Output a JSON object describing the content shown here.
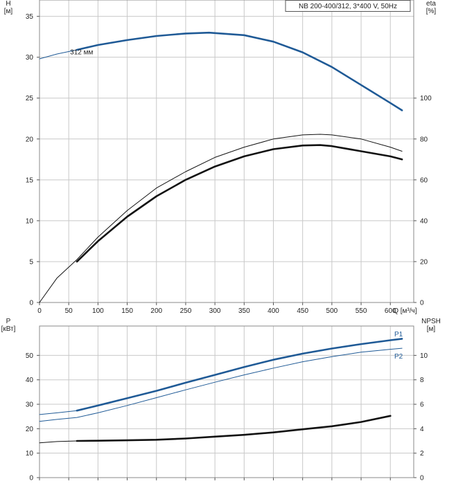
{
  "chart_data": [
    {
      "type": "line",
      "title_box": "NB 200-400/312, 3*400 V, 50Hz",
      "left_axis": {
        "label_top": "H",
        "label_unit": "[м]",
        "range": [
          0,
          37
        ],
        "ticks": [
          0,
          5,
          10,
          15,
          20,
          25,
          30,
          35
        ]
      },
      "right_axis": {
        "label_top": "eta",
        "label_unit": "[%]",
        "range": [
          0,
          148
        ],
        "ticks": [
          0,
          20,
          40,
          60,
          80,
          100
        ]
      },
      "x_axis": {
        "label": "Q [м³/ч]",
        "range": [
          0,
          640
        ],
        "ticks": [
          0,
          50,
          100,
          150,
          200,
          250,
          300,
          350,
          400,
          450,
          500,
          550,
          600
        ]
      },
      "grid": true,
      "annotation": "312 мм",
      "series": [
        {
          "axis": "left",
          "color": "#1f5a96",
          "style": "thin",
          "x": [
            0,
            30,
            64
          ],
          "y": [
            29.8,
            30.4,
            30.9
          ]
        },
        {
          "axis": "left",
          "color": "#1f5a96",
          "style": "thick",
          "x": [
            64,
            100,
            150,
            200,
            250,
            290,
            350,
            400,
            450,
            500,
            550,
            600,
            620
          ],
          "y": [
            30.9,
            31.5,
            32.1,
            32.6,
            32.9,
            33.0,
            32.7,
            31.9,
            30.6,
            28.8,
            26.6,
            24.4,
            23.5
          ]
        },
        {
          "axis": "right",
          "color": "#111111",
          "style": "thin",
          "x": [
            0,
            30,
            64,
            100,
            150,
            200,
            250,
            300,
            350,
            400,
            450,
            480,
            500,
            550,
            600,
            620
          ],
          "y": [
            0,
            12,
            21,
            32,
            45,
            56,
            64,
            71,
            76,
            80,
            82,
            82.3,
            82,
            80,
            76,
            74
          ]
        },
        {
          "axis": "right",
          "color": "#111111",
          "style": "thick",
          "x": [
            64,
            100,
            150,
            200,
            250,
            300,
            350,
            400,
            450,
            480,
            500,
            550,
            600,
            620
          ],
          "y": [
            20,
            30,
            42,
            52,
            60,
            66.5,
            71.5,
            75,
            76.8,
            77,
            76.5,
            74,
            71.5,
            70
          ]
        }
      ]
    },
    {
      "type": "line",
      "left_axis": {
        "label_top": "P",
        "label_unit": "[кВт]",
        "range": [
          0,
          62
        ],
        "ticks": [
          0,
          10,
          20,
          30,
          40,
          50
        ]
      },
      "right_axis": {
        "label_top": "NPSH",
        "label_unit": "[м]",
        "range": [
          0,
          12.4
        ],
        "ticks": [
          0,
          2,
          4,
          6,
          8,
          10
        ]
      },
      "x_axis": {
        "range": [
          0,
          640
        ],
        "ticks": [
          0,
          50,
          100,
          150,
          200,
          250,
          300,
          350,
          400,
          450,
          500,
          550,
          600
        ]
      },
      "grid": true,
      "series": [
        {
          "name": "P1",
          "axis": "left",
          "color": "#1f5a96",
          "style": "thin",
          "x": [
            0,
            30,
            64
          ],
          "y": [
            25.8,
            26.5,
            27.4
          ]
        },
        {
          "name": "P1",
          "axis": "left",
          "color": "#1f5a96",
          "style": "thick",
          "x": [
            64,
            100,
            150,
            200,
            250,
            300,
            350,
            400,
            450,
            500,
            550,
            600,
            620
          ],
          "y": [
            27.4,
            29.5,
            32.5,
            35.5,
            38.8,
            42.0,
            45.2,
            48.2,
            50.7,
            52.8,
            54.6,
            56.2,
            56.8
          ]
        },
        {
          "name": "P2",
          "axis": "left",
          "color": "#1f5a96",
          "style": "thin",
          "x": [
            0,
            30,
            64,
            100,
            150,
            200,
            250,
            300,
            350,
            400,
            450,
            500,
            550,
            600,
            620
          ],
          "y": [
            23.0,
            23.8,
            24.6,
            26.5,
            29.5,
            32.7,
            35.9,
            39.0,
            42.0,
            44.8,
            47.4,
            49.5,
            51.3,
            52.5,
            52.9
          ]
        },
        {
          "axis": "right",
          "color": "#111111",
          "style": "thin",
          "x": [
            0,
            30,
            64
          ],
          "y": [
            2.85,
            2.95,
            3.0
          ]
        },
        {
          "axis": "right",
          "color": "#111111",
          "style": "thick",
          "x": [
            64,
            100,
            150,
            200,
            250,
            300,
            350,
            400,
            450,
            500,
            550,
            600
          ],
          "y": [
            3.0,
            3.02,
            3.05,
            3.1,
            3.2,
            3.35,
            3.5,
            3.7,
            3.95,
            4.2,
            4.55,
            5.05
          ]
        }
      ],
      "end_labels": [
        "P1",
        "P2"
      ]
    }
  ]
}
